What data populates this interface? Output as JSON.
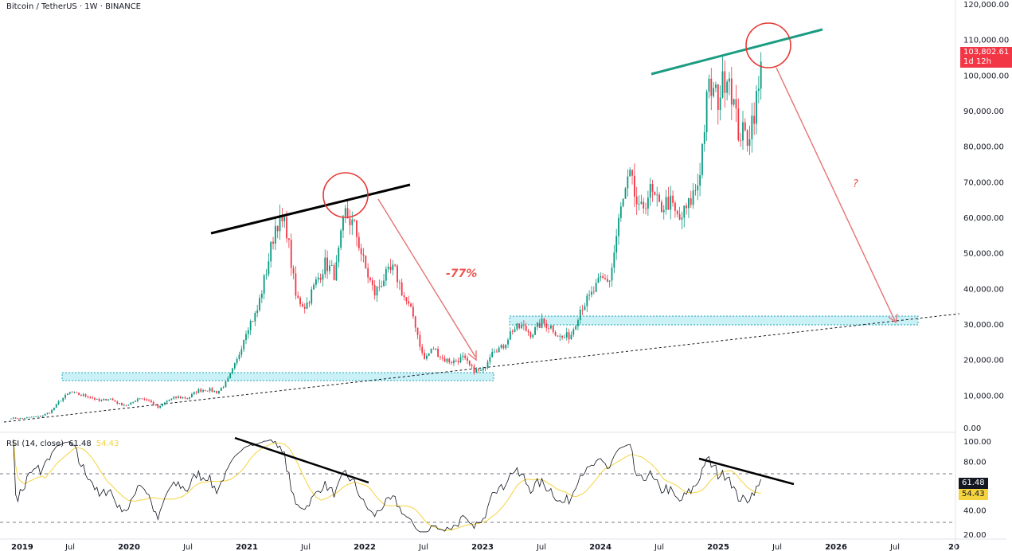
{
  "header": {
    "title": "Bitcoin / TetherUS · 1W · BINANCE"
  },
  "last_price": {
    "value": "103,802.61",
    "countdown": "1d 12h",
    "color": "#f23645"
  },
  "rsi": {
    "label": "RSI (14, close)",
    "value": "61.48",
    "ma_value": "54.43",
    "line_color": "#131722",
    "ma_color": "#f5d33f",
    "axis_labels": [
      "100.00",
      "80.00",
      "40.00",
      "20.00"
    ]
  },
  "annotations": {
    "drop_label": "-77%",
    "question_label": "?"
  },
  "chart_data": {
    "type": "candlestick",
    "title": "Bitcoin / TetherUS · 1W · BINANCE",
    "interval": "1W",
    "ylim": [
      0,
      120000
    ],
    "price_axis_labels": [
      "120,000.00",
      "110,000.00",
      "100,000.00",
      "90,000.00",
      "80,000.00",
      "70,000.00",
      "60,000.00",
      "50,000.00",
      "40,000.00",
      "30,000.00",
      "20,000.00",
      "10,000.00",
      "0.00"
    ],
    "time_axis_labels": [
      "2019",
      "Jul",
      "2020",
      "Jul",
      "2021",
      "Jul",
      "2022",
      "Jul",
      "2023",
      "Jul",
      "2024",
      "Jul",
      "2025",
      "Jul",
      "2026",
      "Jul",
      "20"
    ],
    "monthly_close_start": "2019-01",
    "monthly_close": [
      3450,
      3850,
      4100,
      5300,
      8550,
      10800,
      10100,
      9600,
      8300,
      9150,
      7550,
      7200,
      9350,
      8550,
      6400,
      8650,
      9450,
      9150,
      11350,
      11650,
      10800,
      13800,
      19700,
      29000,
      33100,
      45200,
      58900,
      57700,
      37300,
      35000,
      41500,
      47100,
      43800,
      61300,
      57000,
      46300,
      38500,
      43200,
      45500,
      37700,
      31800,
      19900,
      23300,
      20050,
      19400,
      20500,
      17150,
      16550,
      23100,
      23150,
      28450,
      29250,
      27200,
      30450,
      29250,
      25950,
      26950,
      34650,
      37700,
      42300,
      42600,
      61200,
      71300,
      60600,
      67500,
      62700,
      64600,
      58900,
      63300,
      70200,
      96400,
      93400,
      102400,
      84300,
      82500,
      94200,
      103800
    ],
    "last_close": 103802.61,
    "support_zones": [
      [
        14000,
        16300
      ],
      [
        29800,
        32200
      ]
    ],
    "grid": false
  }
}
